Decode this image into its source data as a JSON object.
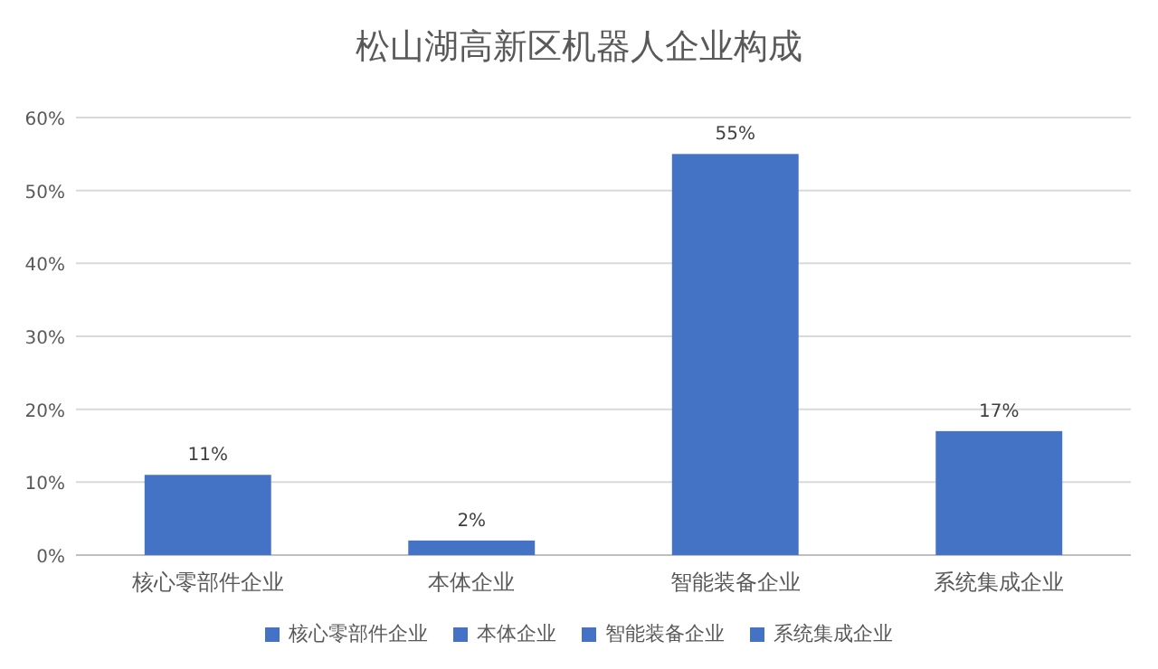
{
  "chart_data": {
    "type": "bar",
    "title": "松山湖高新区机器人企业构成",
    "categories": [
      "核心零部件企业",
      "本体企业",
      "智能装备企业",
      "系统集成企业"
    ],
    "stacked": true,
    "series": [
      {
        "name": "核心零部件企业",
        "color": "#4472c4",
        "values": [
          11,
          null,
          null,
          null
        ],
        "value_labels": [
          "11%",
          null,
          null,
          null
        ]
      },
      {
        "name": "本体企业",
        "color": "#4472c4",
        "values": [
          null,
          2,
          null,
          null
        ],
        "value_labels": [
          null,
          "2%",
          null,
          null
        ]
      },
      {
        "name": "智能装备企业",
        "color": "#4472c4",
        "values": [
          null,
          null,
          55,
          null
        ],
        "value_labels": [
          null,
          null,
          "55%",
          null
        ]
      },
      {
        "name": "系统集成企业",
        "color": "#4472c4",
        "values": [
          null,
          null,
          null,
          17
        ],
        "value_labels": [
          null,
          null,
          null,
          "17%"
        ]
      }
    ],
    "ylim": [
      0,
      60
    ],
    "yticks": [
      {
        "value": 0,
        "label": "0%"
      },
      {
        "value": 10,
        "label": "10%"
      },
      {
        "value": 20,
        "label": "20%"
      },
      {
        "value": 30,
        "label": "30%"
      },
      {
        "value": 40,
        "label": "40%"
      },
      {
        "value": 50,
        "label": "50%"
      },
      {
        "value": 60,
        "label": "60%"
      }
    ],
    "grid": "y",
    "legend": "bottom"
  }
}
